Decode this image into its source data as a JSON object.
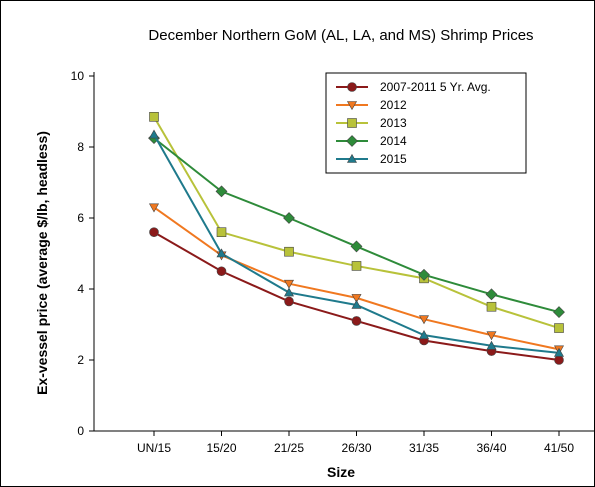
{
  "chart_data": {
    "type": "line",
    "title": "December Northern GoM (AL, LA, and MS) Shrimp Prices",
    "xlabel": "Size",
    "ylabel": "Ex-vessel price (average $/lb, headless)",
    "categories": [
      "UN/15",
      "15/20",
      "21/25",
      "26/30",
      "31/35",
      "36/40",
      "41/50"
    ],
    "ylim": [
      0,
      10
    ],
    "yticks": [
      "0",
      "2",
      "4",
      "6",
      "8",
      "10"
    ],
    "grid": false,
    "legend_position": "top-right",
    "series": [
      {
        "name": "2007-2011 5 Yr. Avg.",
        "color": "#8b1a1a",
        "marker": "circle",
        "values": [
          5.6,
          4.5,
          3.65,
          3.1,
          2.55,
          2.25,
          2.0
        ]
      },
      {
        "name": "2012",
        "color": "#f07820",
        "marker": "triangle-down",
        "values": [
          6.3,
          4.95,
          4.15,
          3.75,
          3.15,
          2.7,
          2.3
        ]
      },
      {
        "name": "2013",
        "color": "#b8c23a",
        "marker": "square",
        "values": [
          8.85,
          5.6,
          5.05,
          4.65,
          4.3,
          3.5,
          2.9
        ]
      },
      {
        "name": "2014",
        "color": "#2e8b3a",
        "marker": "diamond",
        "values": [
          8.25,
          6.75,
          6.0,
          5.2,
          4.4,
          3.85,
          3.35
        ]
      },
      {
        "name": "2015",
        "color": "#1f7a8c",
        "marker": "triangle-up",
        "values": [
          8.35,
          5.0,
          3.9,
          3.55,
          2.7,
          2.4,
          2.2
        ]
      }
    ]
  }
}
